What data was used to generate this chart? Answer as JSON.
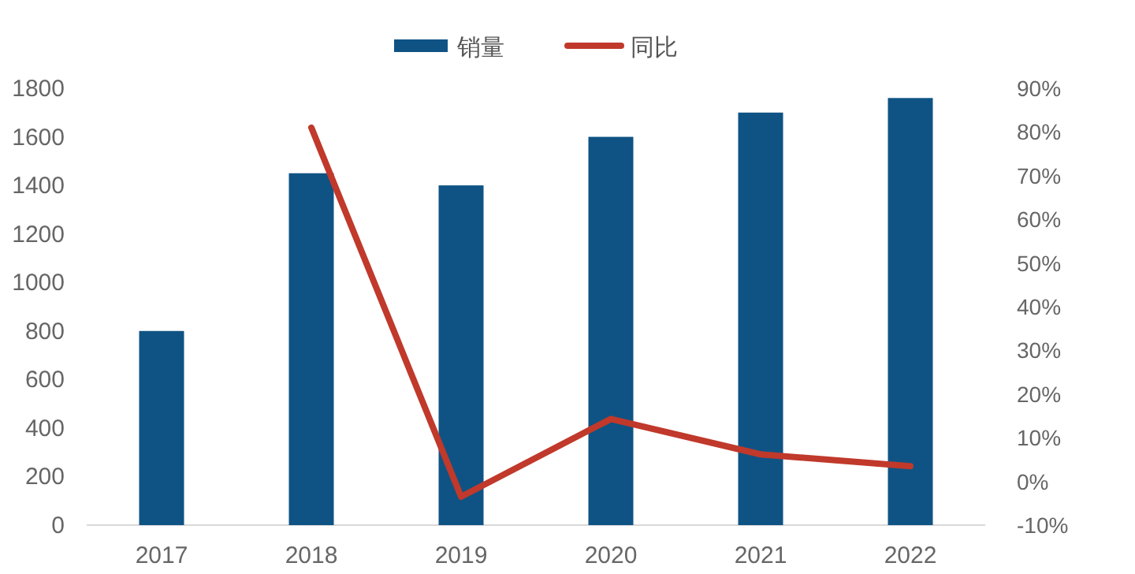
{
  "chart_data": {
    "type": "bar",
    "categories": [
      "2017",
      "2018",
      "2019",
      "2020",
      "2021",
      "2022"
    ],
    "series": [
      {
        "name": "销量",
        "color": "#0f5384",
        "values": [
          800,
          1450,
          1400,
          1600,
          1700,
          1760
        ]
      },
      {
        "name": "同比",
        "type": "line",
        "axis": "y2",
        "color": "#c0392b",
        "values": [
          null,
          81,
          -3.5,
          14.3,
          6.2,
          3.5
        ]
      }
    ],
    "ylim": [
      0,
      1800
    ],
    "yticks": [
      0,
      200,
      400,
      600,
      800,
      1000,
      1200,
      1400,
      1600,
      1800
    ],
    "y2lim": [
      -10,
      90
    ],
    "y2ticks": [
      {
        "value": -10,
        "label": "-10%"
      },
      {
        "value": 0,
        "label": "0%"
      },
      {
        "value": 10,
        "label": "10%"
      },
      {
        "value": 20,
        "label": "20%"
      },
      {
        "value": 30,
        "label": "30%"
      },
      {
        "value": 40,
        "label": "40%"
      },
      {
        "value": 50,
        "label": "50%"
      },
      {
        "value": 60,
        "label": "60%"
      },
      {
        "value": 70,
        "label": "70%"
      },
      {
        "value": 80,
        "label": "80%"
      },
      {
        "value": 90,
        "label": "90%"
      }
    ],
    "legend": "top"
  }
}
